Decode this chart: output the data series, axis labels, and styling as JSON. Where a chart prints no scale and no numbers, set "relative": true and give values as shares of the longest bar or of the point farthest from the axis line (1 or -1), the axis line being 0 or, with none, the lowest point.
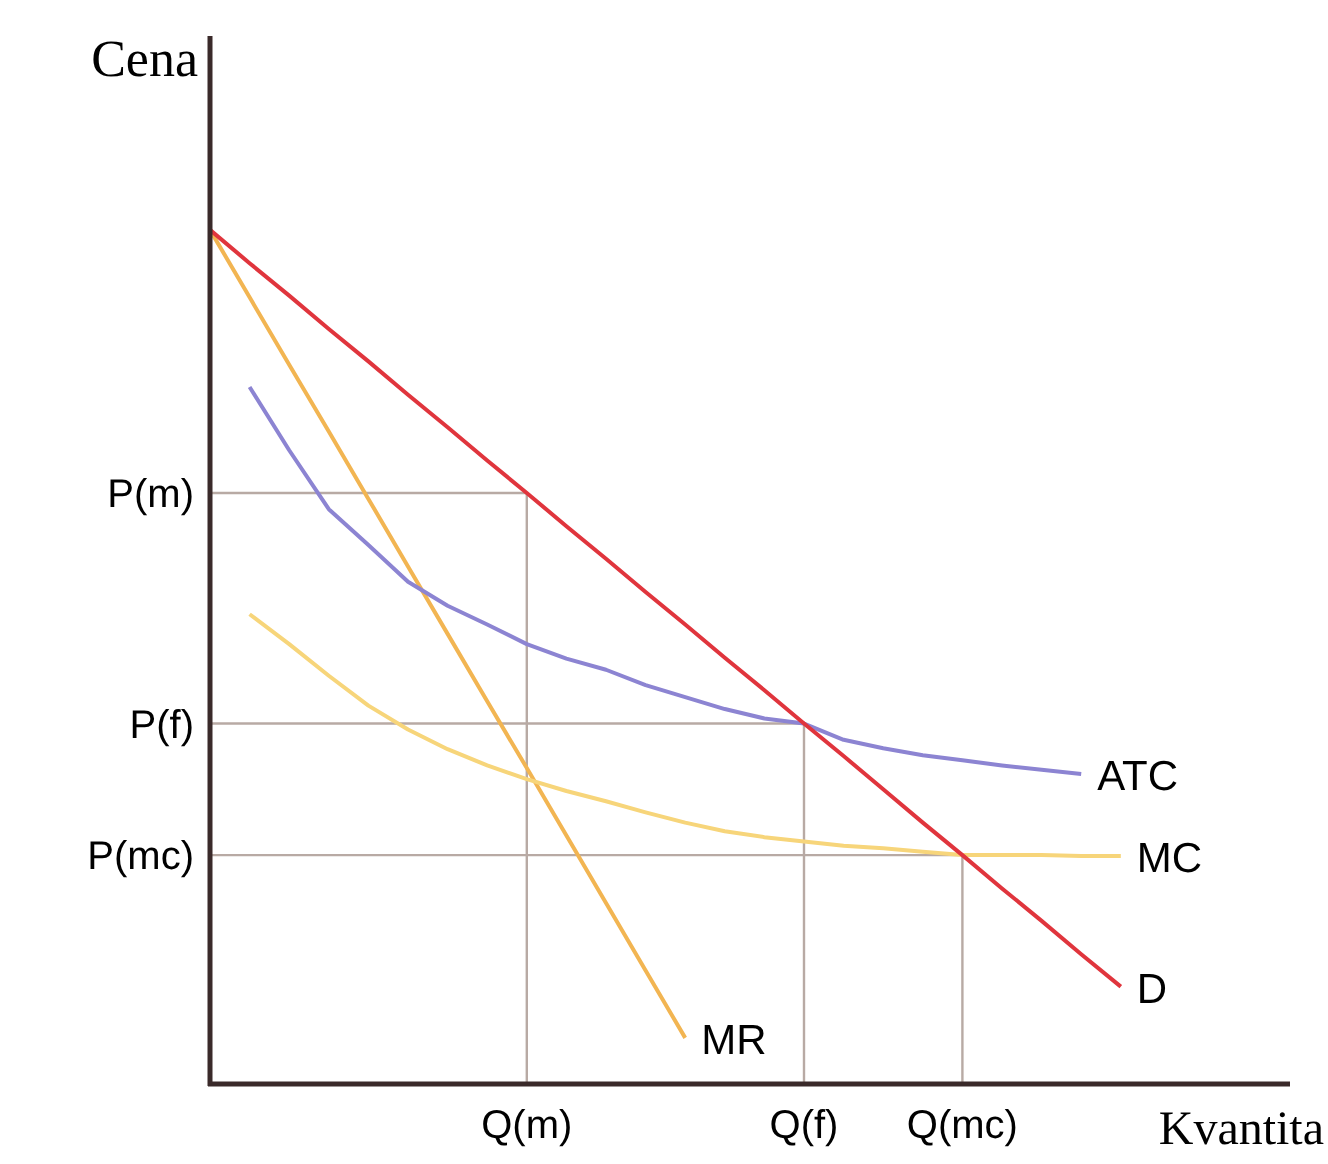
{
  "chart_data": {
    "type": "line",
    "xlabel": "Kvantita",
    "ylabel": "Cena",
    "relative": true,
    "categories": [
      null,
      null,
      null,
      null,
      null,
      null,
      null,
      null,
      "Q(m)",
      null,
      null,
      null,
      null,
      null,
      null,
      "Q(f)",
      null,
      null,
      null,
      "Q(mc)",
      null,
      null,
      null,
      null
    ],
    "ref_lines": [
      {
        "axis": "x",
        "value": "Q(m)"
      },
      {
        "axis": "x",
        "value": "Q(f)"
      },
      {
        "axis": "x",
        "value": "Q(mc)"
      },
      {
        "axis": "y",
        "value": 0.692,
        "label": "P(m)"
      },
      {
        "axis": "y",
        "value": 0.422,
        "label": "P(f)"
      },
      {
        "axis": "y",
        "value": 0.268,
        "label": "P(mc)"
      }
    ],
    "marker": "none",
    "line_style": "solid",
    "series": [
      {
        "name": "MR",
        "color": "#f2b552",
        "values": [
          1,
          0.921,
          0.842,
          0.764,
          0.685,
          0.606,
          0.527,
          0.448,
          0.37,
          0.291,
          0.212,
          0.133,
          0.054,
          null,
          null,
          null,
          null,
          null,
          null,
          null,
          null,
          null,
          null,
          null
        ]
      },
      {
        "name": "ATC",
        "color": "#8c84d2",
        "values": [
          null,
          0.816,
          0.742,
          0.673,
          0.631,
          0.588,
          0.56,
          0.538,
          0.515,
          0.498,
          0.485,
          0.467,
          0.453,
          0.439,
          0.428,
          0.422,
          0.403,
          0.393,
          0.385,
          0.379,
          0.373,
          0.368,
          0.363,
          null
        ]
      },
      {
        "name": "MC",
        "color": "#f7d57a",
        "values": [
          null,
          0.55,
          0.515,
          0.478,
          0.443,
          0.415,
          0.392,
          0.373,
          0.357,
          0.343,
          0.331,
          0.318,
          0.306,
          0.296,
          0.289,
          0.284,
          0.279,
          0.276,
          0.272,
          0.268,
          0.268,
          0.268,
          0.267,
          0.267
        ]
      },
      {
        "name": "D",
        "color": "#e0353d",
        "values": [
          1,
          0.961,
          0.923,
          0.884,
          0.846,
          0.807,
          0.769,
          0.73,
          0.692,
          0.653,
          0.615,
          0.576,
          0.538,
          0.499,
          0.461,
          0.422,
          0.384,
          0.345,
          0.306,
          0.268,
          0.229,
          0.191,
          0.152,
          0.114
        ]
      }
    ]
  }
}
